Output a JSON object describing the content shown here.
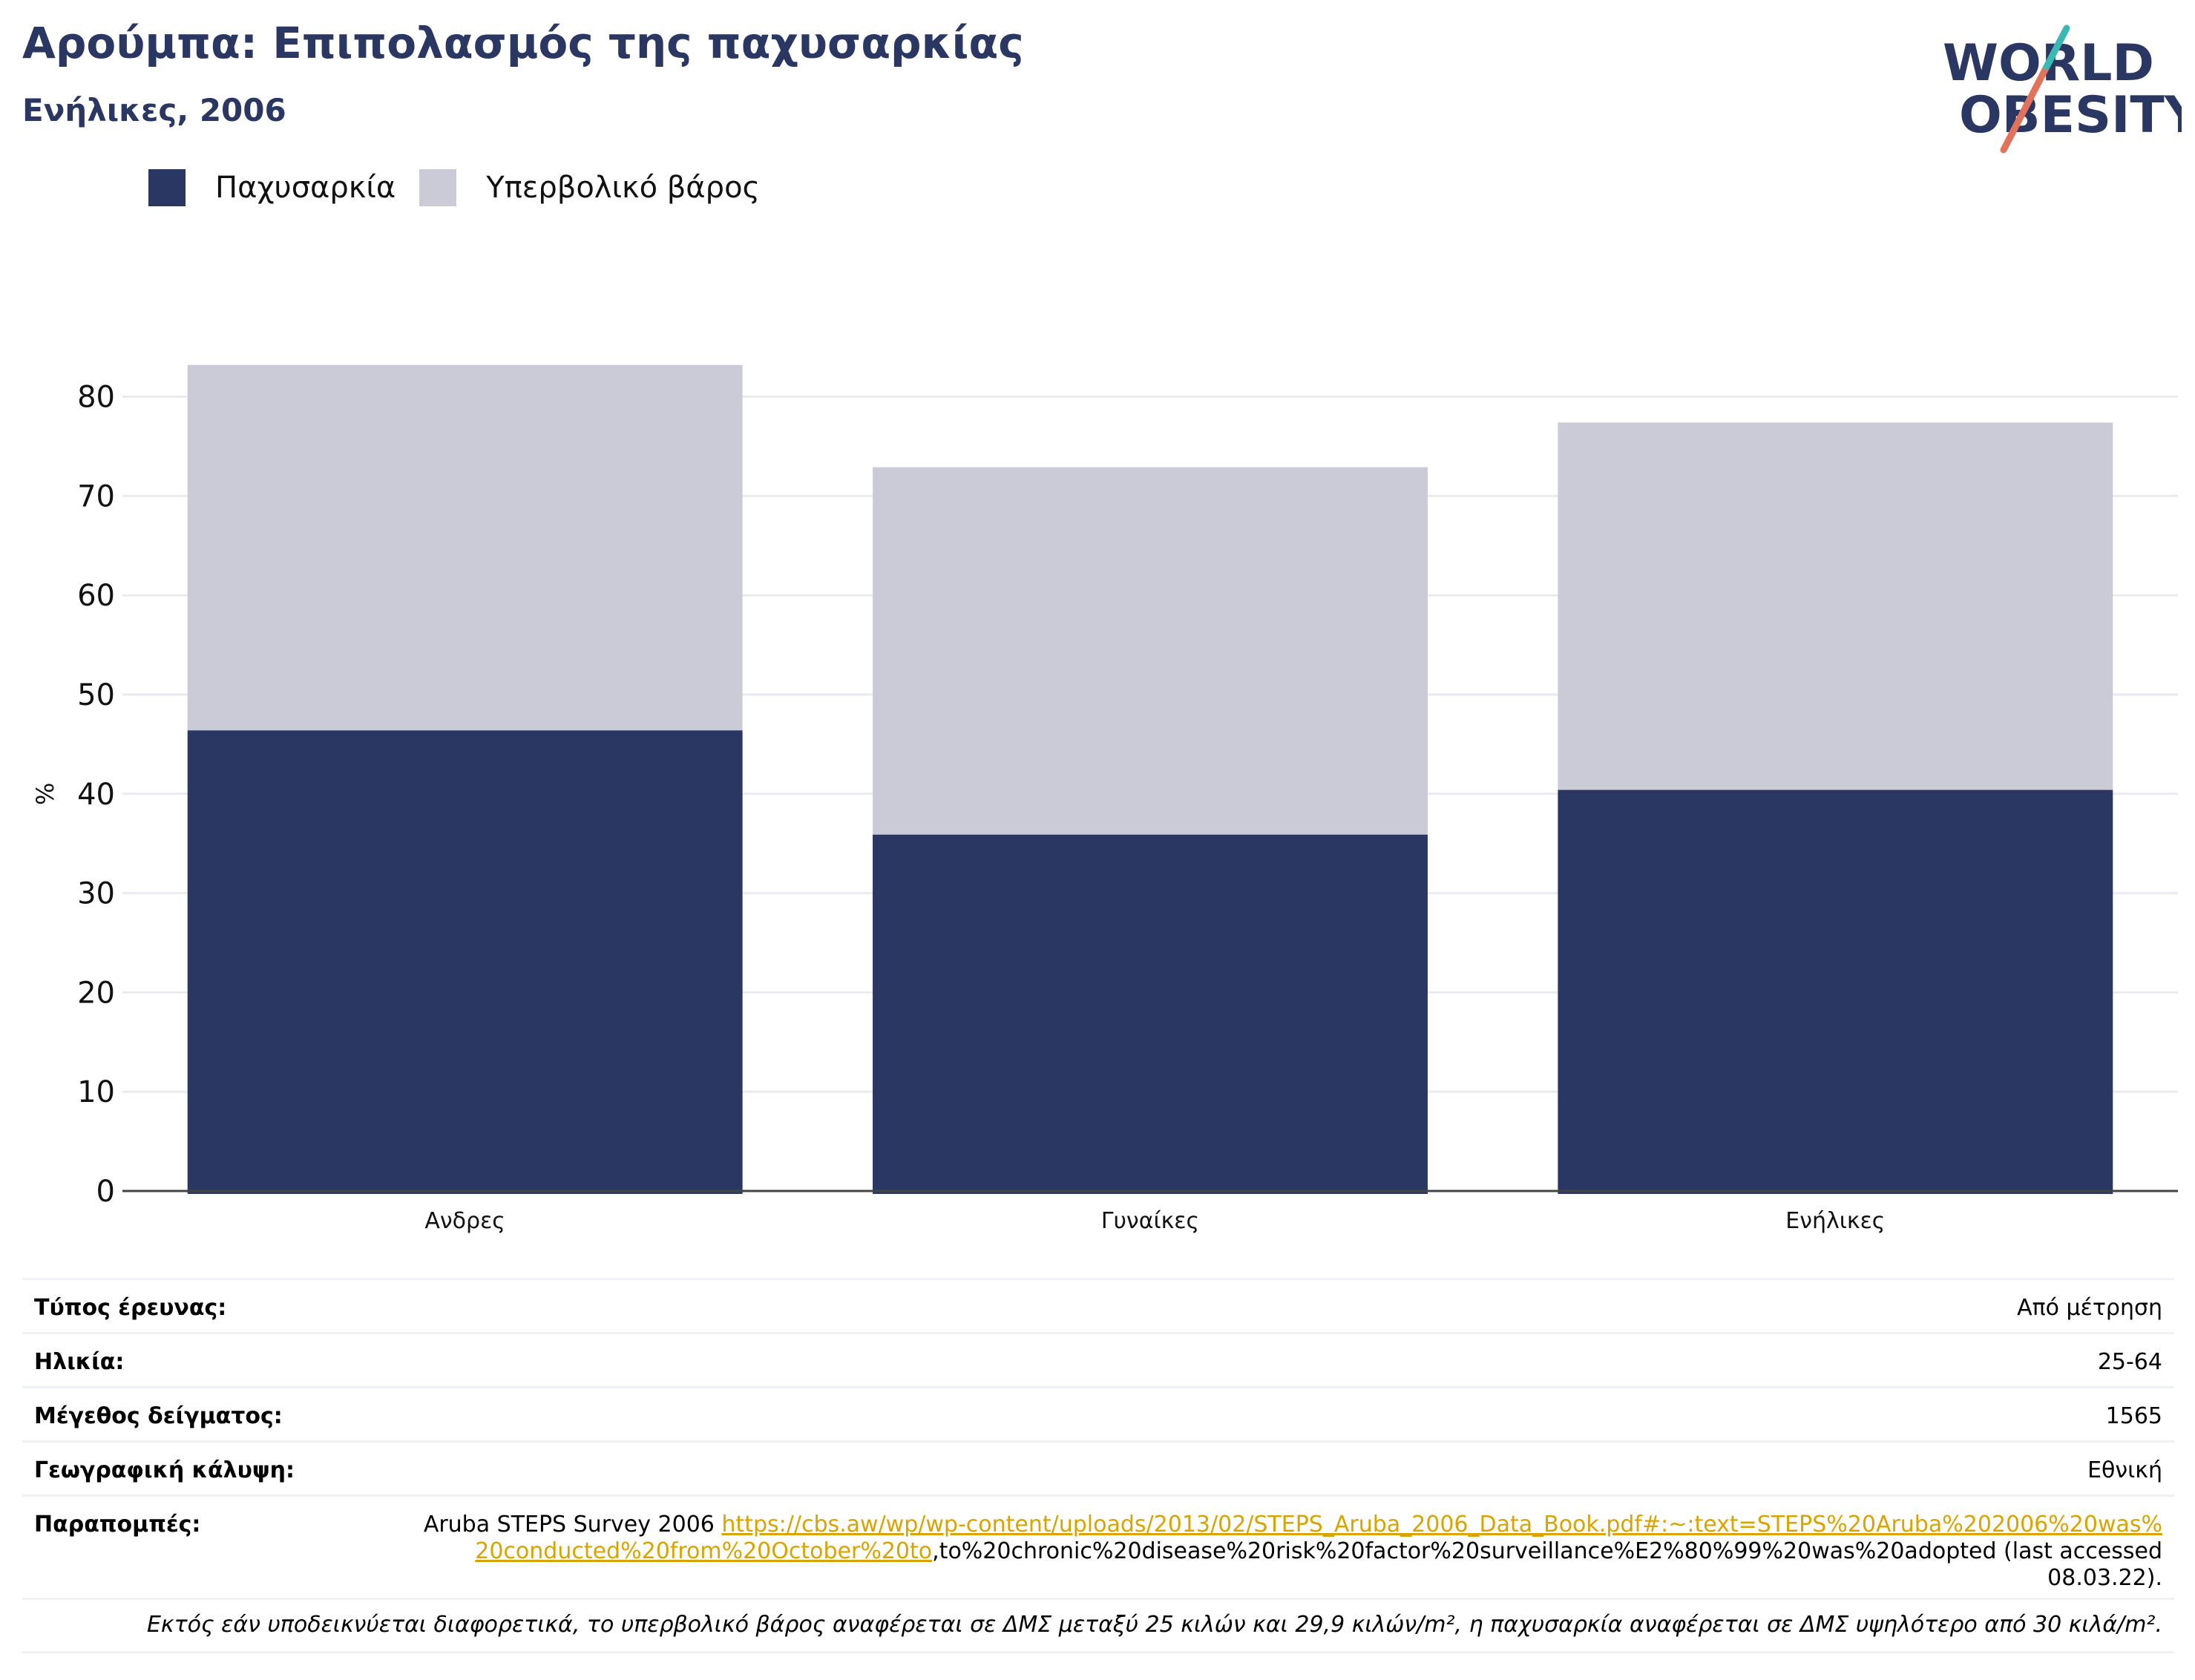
{
  "header": {
    "title": "Αρούμπα: Επιπολασμός της παχυσαρκίας",
    "subtitle": "Ενήλικες, 2006",
    "logo_line1": "WORLD",
    "logo_line2": "OBESITY"
  },
  "legend": {
    "items": [
      {
        "label": "Παχυσαρκία",
        "color": "#2b3763"
      },
      {
        "label": "Υπερβολικό βάρος",
        "color": "#cacbd7"
      }
    ]
  },
  "chart_data": {
    "type": "bar",
    "stacked": true,
    "categories": [
      "Ανδρες",
      "Γυναίκες",
      "Ενήλικες"
    ],
    "series": [
      {
        "name": "Παχυσαρκία",
        "values": [
          46.4,
          35.9,
          40.4
        ],
        "color": "#2b3763"
      },
      {
        "name": "Υπερβολικό βάρος",
        "values": [
          36.8,
          37.0,
          37.0
        ],
        "color": "#cacbd7"
      }
    ],
    "title": "Αρούμπα: Επιπολασμός της παχυσαρκίας",
    "subtitle": "Ενήλικες, 2006",
    "xlabel": "",
    "ylabel": "%",
    "ylim": [
      0,
      90
    ],
    "yticks": [
      0,
      10,
      20,
      30,
      40,
      50,
      60,
      70,
      80
    ],
    "grid": true,
    "legend_position": "top-left"
  },
  "meta": {
    "survey_type_label": "Τύπος έρευνας:",
    "survey_type_value": "Από μέτρηση",
    "age_label": "Ηλικία:",
    "age_value": "25-64",
    "sample_label": "Μέγεθος δείγματος:",
    "sample_value": "1565",
    "coverage_label": "Γεωγραφική κάλυψη:",
    "coverage_value": "Εθνική",
    "refs_label": "Παραπομπές:",
    "refs_prefix": "Aruba STEPS Survey 2006 ",
    "refs_link": "https://cbs.aw/wp/wp-content/uploads/2013/02/STEPS_Aruba_2006_Data_Book.pdf#:~:text=STEPS%20Aruba%202006%20was%20conducted%20from%20October%20to",
    "refs_suffix": ",to%20chronic%20disease%20risk%20factor%20surveillance%E2%80%99%20was%20adopted (last accessed 08.03.22).",
    "note": "Εκτός εάν υποδεικνύεται διαφορετικά, το υπερβολικό βάρος αναφέρεται σε ΔΜΣ μεταξύ 25 κιλών και 29,9 κιλών/m², η παχυσαρκία αναφέρεται σε ΔΜΣ υψηλότερο από 30 κιλά/m²."
  }
}
